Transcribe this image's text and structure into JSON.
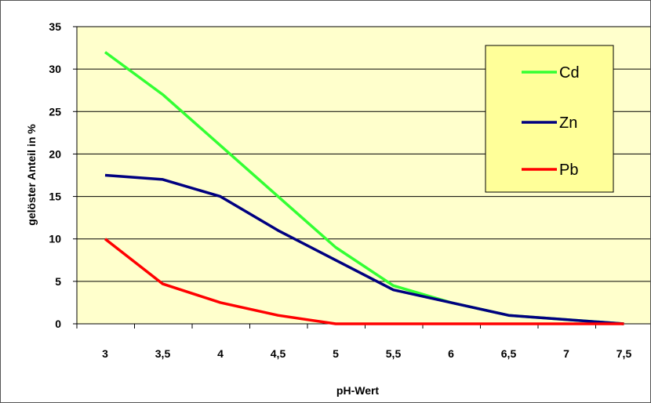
{
  "chart_data": {
    "type": "line",
    "title": "",
    "xlabel": "pH-Wert",
    "ylabel": "gelöster Anteil in %",
    "categories": [
      "3",
      "3,5",
      "4",
      "4,5",
      "5",
      "5,5",
      "6",
      "6,5",
      "7",
      "7,5"
    ],
    "ylim": [
      0,
      35
    ],
    "yticks": [
      "0",
      "5",
      "10",
      "15",
      "20",
      "25",
      "30",
      "35"
    ],
    "grid": true,
    "legend_position": "top-right",
    "plot_background": "#ffffcc",
    "series": [
      {
        "name": "Cd",
        "color": "#33ff33",
        "values": [
          32,
          27,
          21,
          15,
          9,
          4.5,
          2.5,
          1,
          0.5,
          0
        ]
      },
      {
        "name": "Zn",
        "color": "#000080",
        "values": [
          17.5,
          17,
          15,
          11,
          7.5,
          4,
          2.5,
          1,
          0.5,
          0
        ]
      },
      {
        "name": "Pb",
        "color": "#ff0000",
        "values": [
          10,
          4.7,
          2.5,
          1,
          0,
          0,
          0,
          0,
          0,
          0
        ]
      }
    ]
  }
}
